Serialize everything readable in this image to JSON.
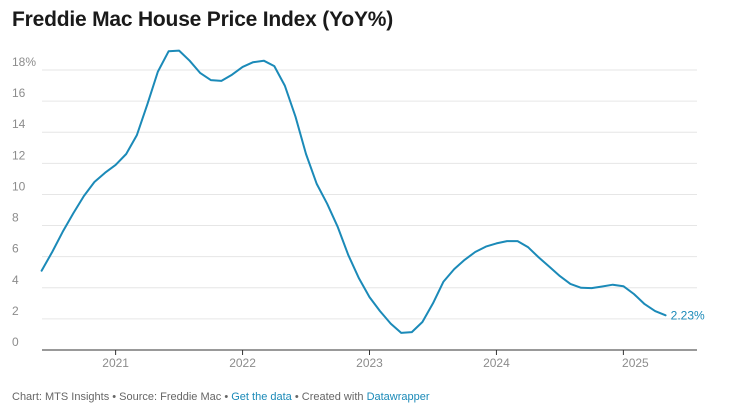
{
  "chart_data": {
    "type": "line",
    "title": "Freddie Mac House Price Index (YoY%)",
    "xlabel": "",
    "ylabel": "",
    "ylim": [
      0,
      18
    ],
    "y_ticks": [
      0,
      2,
      4,
      6,
      8,
      10,
      12,
      14,
      16,
      18
    ],
    "y_tick_labels": [
      "0",
      "2",
      "4",
      "6",
      "8",
      "10",
      "12",
      "14",
      "16",
      "18%"
    ],
    "x_ticks": [
      2021,
      2022,
      2023,
      2024,
      2025
    ],
    "x_tick_labels": [
      "2021",
      "2022",
      "2023",
      "2024",
      "2025"
    ],
    "xlim": [
      2020.42,
      2025.58
    ],
    "grid": true,
    "legend": "none",
    "line_color": "#1b8ab8",
    "end_label": "2.23%",
    "series": [
      {
        "x": [
          2020.417,
          2020.5,
          2020.583,
          2020.667,
          2020.75,
          2020.833,
          2020.917,
          2021.0,
          2021.083,
          2021.167,
          2021.25,
          2021.333,
          2021.417,
          2021.5,
          2021.583,
          2021.667,
          2021.75,
          2021.833,
          2021.917,
          2022.0,
          2022.083,
          2022.167,
          2022.25,
          2022.333,
          2022.417,
          2022.5,
          2022.583,
          2022.667,
          2022.75,
          2022.833,
          2022.917,
          2023.0,
          2023.083,
          2023.167,
          2023.25,
          2023.333,
          2023.417,
          2023.5,
          2023.583,
          2023.667,
          2023.75,
          2023.833,
          2023.917,
          2024.0,
          2024.083,
          2024.167,
          2024.25,
          2024.333,
          2024.417,
          2024.5,
          2024.583,
          2024.667,
          2024.75,
          2024.833,
          2024.917,
          2025.0,
          2025.083,
          2025.167,
          2025.25,
          2025.333
        ],
        "values": [
          5.1,
          6.3,
          7.6,
          8.8,
          9.9,
          10.8,
          11.4,
          11.9,
          12.6,
          13.8,
          15.8,
          17.9,
          19.2,
          19.25,
          18.6,
          17.8,
          17.35,
          17.3,
          17.7,
          18.2,
          18.5,
          18.6,
          18.25,
          17.0,
          15.0,
          12.6,
          10.7,
          9.4,
          7.9,
          6.1,
          4.6,
          3.4,
          2.5,
          1.7,
          1.1,
          1.15,
          1.8,
          3.0,
          4.4,
          5.2,
          5.8,
          6.3,
          6.65,
          6.85,
          7.0,
          7.0,
          6.6,
          5.95,
          5.35,
          4.75,
          4.25,
          4.0,
          3.98,
          4.08,
          4.2,
          4.1,
          3.6,
          2.95,
          2.5,
          2.23
        ]
      }
    ]
  },
  "footer": {
    "credit": "Chart: MTS Insights • Source: Freddie Mac • ",
    "data_link": "Get the data",
    "created_with": " • Created with ",
    "tool_link": "Datawrapper"
  }
}
